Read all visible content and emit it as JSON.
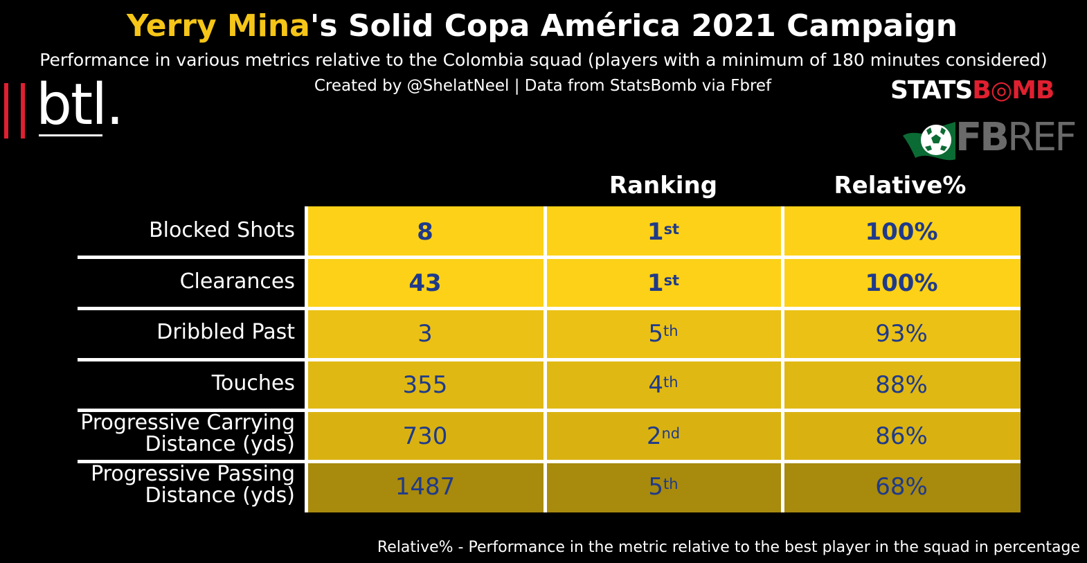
{
  "header": {
    "title_highlight": "Yerry Mina",
    "title_rest": "'s Solid Copa América 2021 Campaign",
    "subtitle": "Performance in various metrics relative to the Colombia squad (players with a minimum of 180 minutes considered)",
    "credit": "Created by @ShelatNeel | Data from StatsBomb via Fbref"
  },
  "logos": {
    "btl": "btl",
    "btl_dot": ".",
    "statsbomb_white": "STATS",
    "statsbomb_red": "B◎MB",
    "fbref_bold": "FB",
    "fbref_light": "REF"
  },
  "footer": "Relative% - Performance in the metric relative to the best player in the squad in percentage",
  "colors": {
    "highlight": "#f5c518",
    "text_dark": "#1f3a8a",
    "row_fills": [
      "#fdd117",
      "#fdd117",
      "#ebc115",
      "#e0b813",
      "#d9b212",
      "#a88a0d"
    ]
  },
  "chart_data": {
    "type": "table",
    "title": "Yerry Mina's Solid Copa América 2021 Campaign",
    "columns": [
      "",
      "Ranking",
      "Relative%"
    ],
    "rows": [
      {
        "metric": "Blocked Shots",
        "value": "8",
        "rank_num": "1",
        "rank_suffix": "st",
        "relative": "100%",
        "relative_pct": 100
      },
      {
        "metric": "Clearances",
        "value": "43",
        "rank_num": "1",
        "rank_suffix": "st",
        "relative": "100%",
        "relative_pct": 100
      },
      {
        "metric": "Dribbled Past",
        "value": "3",
        "rank_num": "5",
        "rank_suffix": "th",
        "relative": "93%",
        "relative_pct": 93
      },
      {
        "metric": "Touches",
        "value": "355",
        "rank_num": "4",
        "rank_suffix": "th",
        "relative": "88%",
        "relative_pct": 88
      },
      {
        "metric_line1": "Progressive Carrying",
        "metric_line2": "Distance (yds)",
        "value": "730",
        "rank_num": "2",
        "rank_suffix": "nd",
        "relative": "86%",
        "relative_pct": 86
      },
      {
        "metric_line1": "Progressive Passing",
        "metric_line2": "Distance (yds)",
        "value": "1487",
        "rank_num": "5",
        "rank_suffix": "th",
        "relative": "68%",
        "relative_pct": 68
      }
    ]
  }
}
